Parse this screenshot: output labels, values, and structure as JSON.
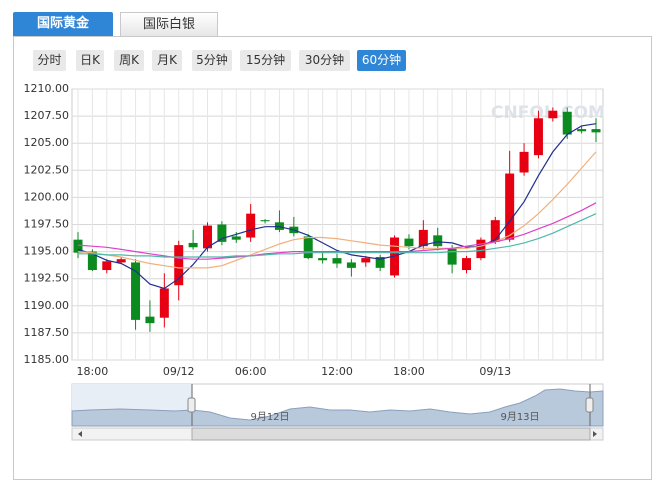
{
  "tabs": [
    "国际黄金",
    "国际白银"
  ],
  "period_buttons": [
    "分时",
    "日K",
    "周K",
    "月K",
    "5分钟",
    "15分钟",
    "30分钟",
    "60分钟"
  ],
  "watermark": "CNFOL.COM",
  "navigator_labels": [
    "9月12日",
    "9月13日"
  ],
  "chart_data": {
    "type": "candlestick",
    "up_color": "#e60012",
    "down_color": "#0a8a1f",
    "grid": true,
    "categories": [
      null,
      "18:00",
      null,
      null,
      null,
      null,
      null,
      "09/12",
      null,
      null,
      null,
      null,
      "06:00",
      null,
      null,
      null,
      null,
      null,
      "12:00",
      null,
      null,
      null,
      null,
      "18:00",
      null,
      null,
      null,
      null,
      null,
      "09/13",
      null,
      null,
      null,
      null,
      null,
      null,
      null
    ],
    "open": [
      1196.1,
      1195.0,
      1193.3,
      1194.0,
      1194.0,
      1189.0,
      1188.9,
      1191.9,
      1195.8,
      1195.3,
      1197.5,
      1196.4,
      1196.3,
      1197.9,
      1197.7,
      1197.3,
      1196.4,
      1194.4,
      1194.4,
      1194.0,
      1194.0,
      1194.5,
      1192.8,
      1196.2,
      1195.5,
      1196.5,
      1195.3,
      1193.3,
      1194.4,
      1195.9,
      1196.1,
      1202.3,
      1203.9,
      1207.3,
      1207.9,
      1206.3,
      1206.3
    ],
    "high": [
      1196.8,
      1195.2,
      1194.3,
      1194.5,
      1194.3,
      1190.5,
      1193.0,
      1196.0,
      1197.0,
      1197.7,
      1197.8,
      1196.8,
      1199.4,
      1198.0,
      1198.8,
      1198.2,
      1196.6,
      1195.0,
      1194.8,
      1194.3,
      1194.6,
      1194.7,
      1196.5,
      1196.6,
      1197.9,
      1197.2,
      1195.6,
      1194.6,
      1196.3,
      1198.2,
      1204.3,
      1205.0,
      1208.0,
      1208.3,
      1208.3,
      1206.6,
      1207.3
    ],
    "low": [
      1194.4,
      1193.2,
      1193.0,
      1193.9,
      1187.8,
      1187.6,
      1188.0,
      1190.5,
      1195.2,
      1195.0,
      1195.6,
      1195.8,
      1195.9,
      1197.6,
      1196.8,
      1196.4,
      1194.3,
      1193.9,
      1193.5,
      1192.7,
      1193.6,
      1193.2,
      1192.6,
      1195.2,
      1195.2,
      1195.1,
      1193.0,
      1193.0,
      1194.2,
      1195.7,
      1195.9,
      1202.0,
      1203.6,
      1207.0,
      1205.4,
      1205.9,
      1205.1
    ],
    "close": [
      1194.9,
      1193.3,
      1194.1,
      1194.3,
      1188.7,
      1188.4,
      1191.6,
      1195.6,
      1195.4,
      1197.4,
      1195.9,
      1196.1,
      1198.5,
      1197.8,
      1197.0,
      1196.7,
      1194.4,
      1194.2,
      1193.9,
      1193.5,
      1194.4,
      1193.5,
      1196.3,
      1195.5,
      1197.0,
      1195.5,
      1193.8,
      1194.4,
      1196.1,
      1197.9,
      1202.2,
      1204.2,
      1207.3,
      1208.0,
      1205.8,
      1206.1,
      1206.0
    ],
    "moving_averages": [
      {
        "color": "#1f2f8f",
        "values": [
          1195.2,
          1194.8,
          1194.2,
          1193.9,
          1193.2,
          1192.0,
          1191.6,
          1192.5,
          1193.8,
          1195.4,
          1196.2,
          1196.6,
          1197.0,
          1197.3,
          1197.3,
          1197.0,
          1196.5,
          1195.8,
          1195.1,
          1194.7,
          1194.5,
          1194.3,
          1194.6,
          1195.0,
          1195.6,
          1195.9,
          1195.8,
          1195.4,
          1195.5,
          1196.1,
          1197.8,
          1199.6,
          1202.0,
          1204.2,
          1205.8,
          1206.6,
          1206.8
        ]
      },
      {
        "color": "#f0b07a",
        "values": [
          1195.0,
          1194.9,
          1194.7,
          1194.5,
          1194.2,
          1193.9,
          1193.7,
          1193.5,
          1193.5,
          1193.5,
          1193.7,
          1194.2,
          1194.7,
          1195.2,
          1195.7,
          1196.1,
          1196.3,
          1196.3,
          1196.2,
          1196.0,
          1195.8,
          1195.6,
          1195.5,
          1195.4,
          1195.3,
          1195.3,
          1195.3,
          1195.3,
          1195.5,
          1195.9,
          1196.5,
          1197.4,
          1198.5,
          1199.8,
          1201.2,
          1202.7,
          1204.2
        ]
      },
      {
        "color": "#e040c8",
        "values": [
          1195.6,
          1195.5,
          1195.4,
          1195.2,
          1195.0,
          1194.8,
          1194.6,
          1194.4,
          1194.3,
          1194.3,
          1194.4,
          1194.5,
          1194.6,
          1194.8,
          1194.9,
          1195.0,
          1195.0,
          1195.0,
          1195.0,
          1195.0,
          1195.0,
          1195.0,
          1195.0,
          1195.0,
          1195.1,
          1195.2,
          1195.3,
          1195.5,
          1195.7,
          1195.9,
          1196.2,
          1196.6,
          1197.1,
          1197.6,
          1198.2,
          1198.8,
          1199.5
        ]
      },
      {
        "color": "#4fb8a8",
        "values": [
          1194.8,
          1194.8,
          1194.7,
          1194.7,
          1194.6,
          1194.6,
          1194.5,
          1194.5,
          1194.5,
          1194.5,
          1194.5,
          1194.6,
          1194.6,
          1194.7,
          1194.8,
          1194.8,
          1194.9,
          1194.9,
          1194.9,
          1194.9,
          1194.9,
          1194.9,
          1194.9,
          1194.9,
          1194.9,
          1194.9,
          1195.0,
          1195.0,
          1195.1,
          1195.3,
          1195.5,
          1195.8,
          1196.2,
          1196.7,
          1197.3,
          1197.9,
          1198.5
        ]
      }
    ],
    "ylim": [
      1185,
      1210
    ],
    "yticks": [
      {
        "value": 1185,
        "label": "1185.00"
      },
      {
        "value": 1187.5,
        "label": "1187.50"
      },
      {
        "value": 1190,
        "label": "1190.00"
      },
      {
        "value": 1192.5,
        "label": "1192.50"
      },
      {
        "value": 1195,
        "label": "1195.00"
      },
      {
        "value": 1197.5,
        "label": "1197.50"
      },
      {
        "value": 1200,
        "label": "1200.00"
      },
      {
        "value": 1202.5,
        "label": "1202.50"
      },
      {
        "value": 1205,
        "label": "1205.00"
      },
      {
        "value": 1207.5,
        "label": "1207.50"
      },
      {
        "value": 1210,
        "label": "1210.00"
      }
    ]
  }
}
